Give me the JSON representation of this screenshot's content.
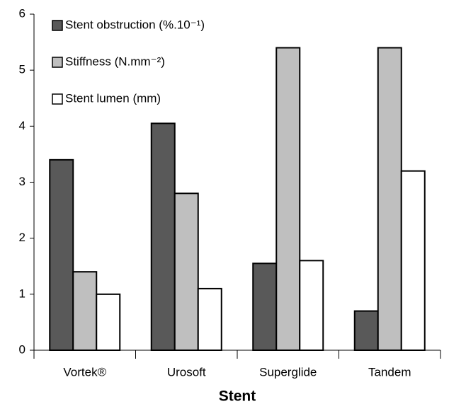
{
  "chart_data": {
    "type": "bar",
    "x_label": "Stent",
    "categories": [
      "Vortek®",
      "Urosoft",
      "Superglide",
      "Tandem"
    ],
    "series": [
      {
        "name": "Stent obstruction (%.10⁻¹)",
        "color": "#595959",
        "values": [
          3.4,
          4.05,
          1.55,
          0.7
        ]
      },
      {
        "name": "Stiffness (N.mm⁻²)",
        "color": "#bfbfbf",
        "values": [
          1.4,
          2.8,
          5.4,
          5.4
        ]
      },
      {
        "name": "Stent lumen (mm)",
        "color": "#ffffff",
        "values": [
          1.0,
          1.1,
          1.6,
          3.2
        ]
      }
    ],
    "ylim": [
      0,
      6
    ],
    "yticks": [
      0,
      1,
      2,
      3,
      4,
      5,
      6
    ],
    "grid": false,
    "legend": "upper left"
  }
}
